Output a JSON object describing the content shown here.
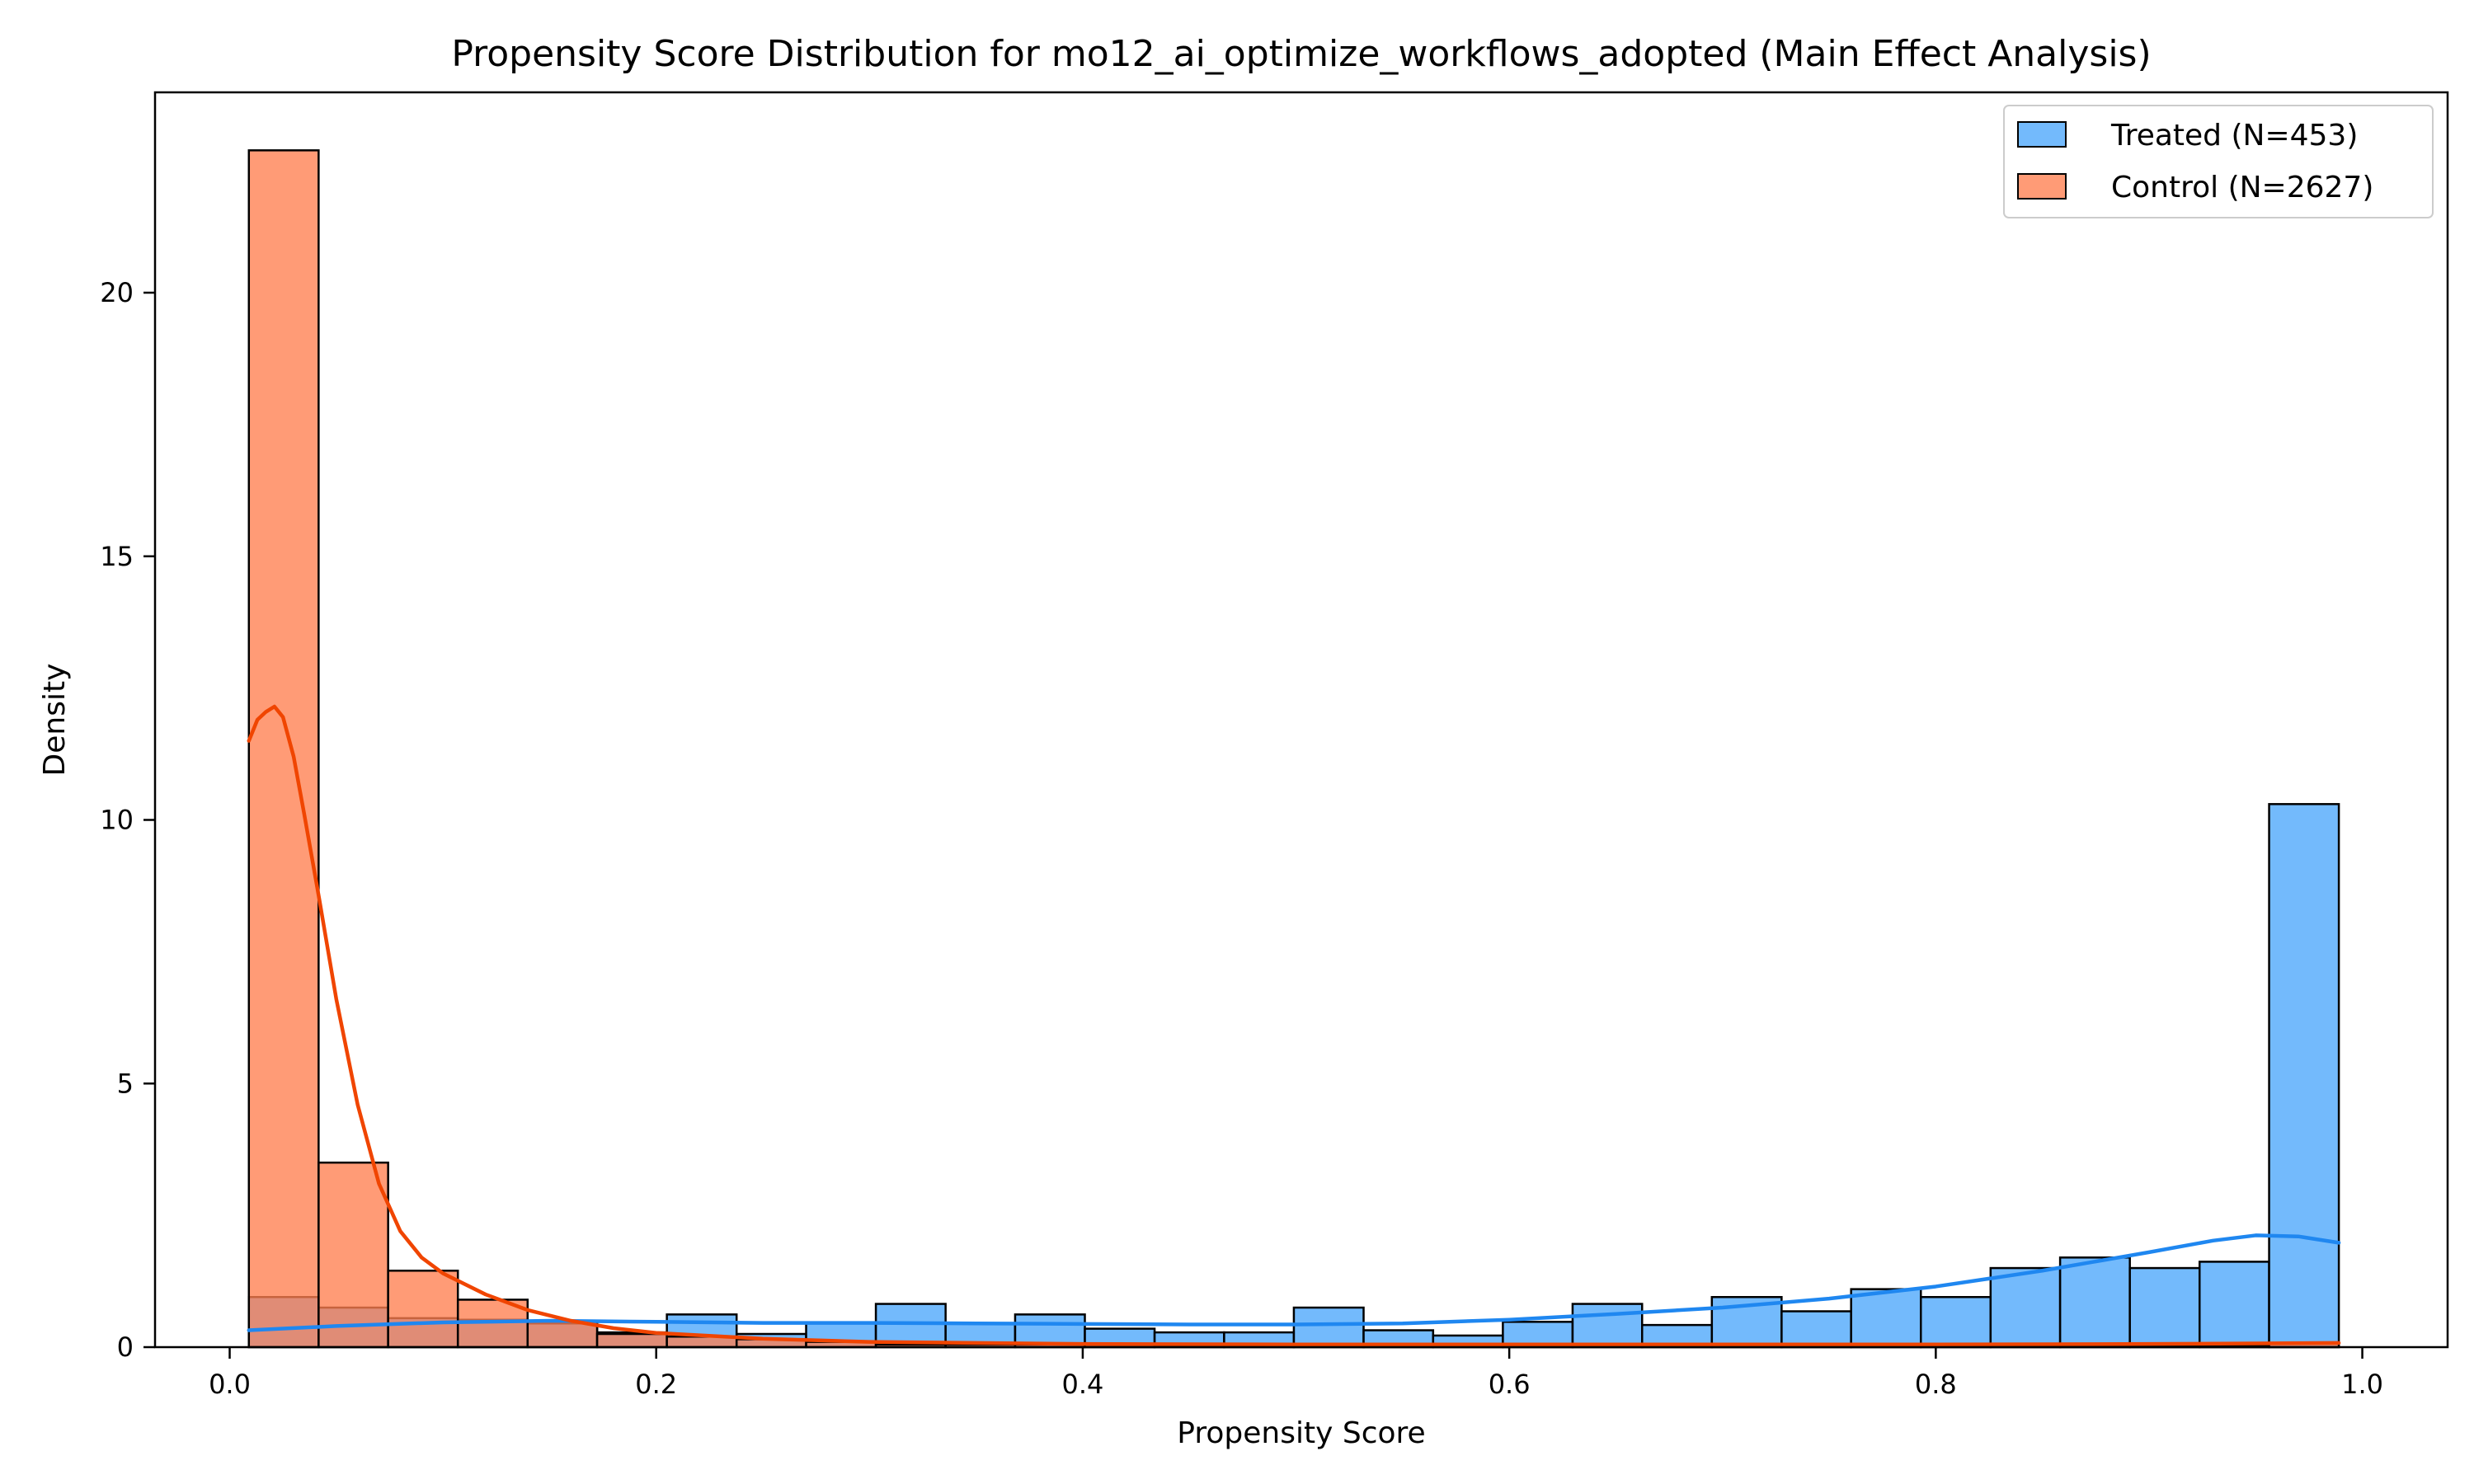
{
  "chart_data": {
    "type": "histogram",
    "title": "Propensity Score Distribution for mo12_ai_optimize_workflows_adopted (Main Effect Analysis)",
    "xlabel": "Propensity Score",
    "ylabel": "Density",
    "xlim": [
      -0.035,
      1.04
    ],
    "ylim": [
      0,
      23.8
    ],
    "x_ticks": [
      0.0,
      0.2,
      0.4,
      0.6,
      0.8,
      1.0
    ],
    "x_tick_labels": [
      "0.0",
      "0.2",
      "0.4",
      "0.6",
      "0.8",
      "1.0"
    ],
    "y_ticks": [
      0,
      5,
      10,
      15,
      20
    ],
    "y_tick_labels": [
      "0",
      "5",
      "10",
      "15",
      "20"
    ],
    "grid": false,
    "legend_position": "top-right",
    "bin_edges": [
      0.009,
      0.0417,
      0.0743,
      0.107,
      0.1397,
      0.1723,
      0.205,
      0.2377,
      0.2703,
      0.303,
      0.3357,
      0.3683,
      0.401,
      0.4337,
      0.4663,
      0.499,
      0.5317,
      0.5643,
      0.597,
      0.6297,
      0.6623,
      0.695,
      0.7277,
      0.7603,
      0.793,
      0.8257,
      0.8583,
      0.891,
      0.9237,
      0.9563,
      0.989
    ],
    "series": [
      {
        "name": "Treated (N=453)",
        "color": "#5aaefc",
        "line_color": "#1f87f0",
        "values": [
          0.95,
          0.75,
          0.55,
          0.52,
          0.45,
          0.28,
          0.62,
          0.25,
          0.45,
          0.82,
          0.45,
          0.62,
          0.35,
          0.28,
          0.28,
          0.75,
          0.32,
          0.22,
          0.48,
          0.82,
          0.42,
          0.95,
          0.68,
          1.1,
          0.95,
          1.5,
          1.7,
          1.5,
          1.62,
          10.3
        ],
        "kde_x": [
          0.009,
          0.05,
          0.1,
          0.15,
          0.2,
          0.25,
          0.3,
          0.35,
          0.4,
          0.45,
          0.5,
          0.55,
          0.6,
          0.65,
          0.7,
          0.75,
          0.8,
          0.85,
          0.9,
          0.93,
          0.95,
          0.97,
          0.989
        ],
        "kde_y": [
          0.32,
          0.4,
          0.47,
          0.5,
          0.48,
          0.46,
          0.46,
          0.45,
          0.44,
          0.43,
          0.43,
          0.45,
          0.52,
          0.63,
          0.75,
          0.92,
          1.15,
          1.45,
          1.8,
          2.02,
          2.12,
          2.1,
          1.98
        ]
      },
      {
        "name": "Control (N=2627)",
        "color": "#ff7f50",
        "line_color": "#f04500",
        "values": [
          22.7,
          3.5,
          1.45,
          0.9,
          0.5,
          0.25,
          0.2,
          0.15,
          0.1,
          0.05,
          0.05,
          0.05,
          0.05,
          0.04,
          0.04,
          0.03,
          0.03,
          0.03,
          0.03,
          0.03,
          0.03,
          0.03,
          0.03,
          0.03,
          0.03,
          0.03,
          0.03,
          0.03,
          0.04,
          0.08
        ],
        "kde_x": [
          0.009,
          0.013,
          0.017,
          0.021,
          0.025,
          0.03,
          0.035,
          0.042,
          0.05,
          0.06,
          0.07,
          0.08,
          0.09,
          0.1,
          0.12,
          0.14,
          0.16,
          0.18,
          0.2,
          0.25,
          0.3,
          0.4,
          0.5,
          0.6,
          0.7,
          0.8,
          0.9,
          0.95,
          0.989
        ],
        "kde_y": [
          11.5,
          11.9,
          12.05,
          12.15,
          11.95,
          11.2,
          10.1,
          8.5,
          6.6,
          4.6,
          3.1,
          2.2,
          1.7,
          1.4,
          1.0,
          0.7,
          0.5,
          0.36,
          0.27,
          0.16,
          0.1,
          0.06,
          0.05,
          0.05,
          0.05,
          0.05,
          0.06,
          0.07,
          0.08
        ]
      }
    ]
  }
}
